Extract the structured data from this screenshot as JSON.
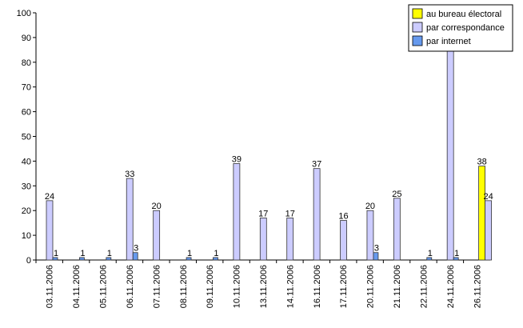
{
  "chart_data": {
    "type": "bar",
    "title": "",
    "xlabel": "",
    "ylabel": "",
    "ylim": [
      0,
      100
    ],
    "yticks": [
      0,
      10,
      20,
      30,
      40,
      50,
      60,
      70,
      80,
      90,
      100
    ],
    "grid": false,
    "legend_placement": "top-right",
    "categories": [
      "03.11.2006",
      "04.11.2006",
      "05.11.2006",
      "06.11.2006",
      "07.11.2006",
      "08.11.2006",
      "09.11.2006",
      "10.11.2006",
      "13.11.2006",
      "14.11.2006",
      "16.11.2006",
      "17.11.2006",
      "20.11.2006",
      "21.11.2006",
      "22.11.2006",
      "24.11.2006",
      "26.11.2006"
    ],
    "series": [
      {
        "name": "au bureau électoral",
        "color": "#ffff00",
        "values": [
          null,
          null,
          null,
          null,
          null,
          null,
          null,
          null,
          null,
          null,
          null,
          null,
          null,
          null,
          null,
          null,
          38
        ]
      },
      {
        "name": "par correspondance",
        "color": "#ccccff",
        "values": [
          24,
          null,
          null,
          33,
          20,
          null,
          null,
          39,
          17,
          17,
          37,
          16,
          20,
          25,
          null,
          85,
          24
        ]
      },
      {
        "name": "par internet",
        "color": "#6699ee",
        "values": [
          1,
          1,
          1,
          3,
          null,
          1,
          1,
          null,
          null,
          null,
          null,
          null,
          3,
          null,
          1,
          1,
          null
        ]
      }
    ],
    "data_labels": [
      [
        null,
        null,
        null,
        null,
        null,
        null,
        null,
        null,
        null,
        null,
        null,
        null,
        null,
        null,
        null,
        null,
        "38"
      ],
      [
        "24",
        null,
        null,
        "33",
        "20",
        null,
        null,
        "39",
        "17",
        "17",
        "37",
        "16",
        "20",
        "25",
        null,
        null,
        "24"
      ],
      [
        "1",
        "1",
        "1",
        "3",
        null,
        "1",
        "1",
        null,
        null,
        null,
        null,
        null,
        "3",
        null,
        "1",
        "1",
        null
      ]
    ]
  }
}
